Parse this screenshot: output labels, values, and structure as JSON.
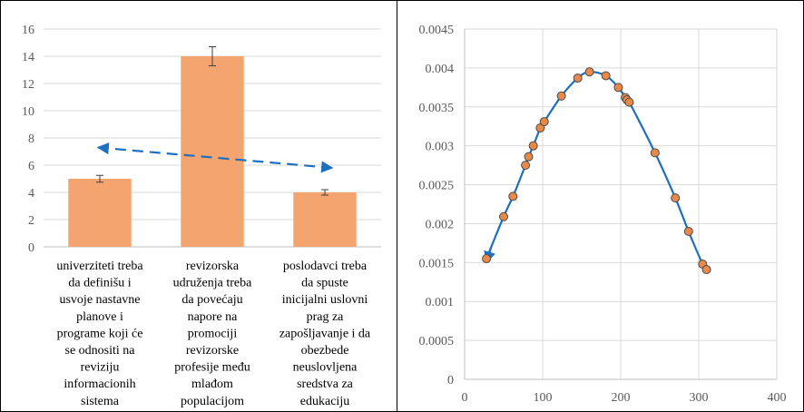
{
  "chart_data": [
    {
      "type": "bar",
      "categories": [
        [
          "univerziteti treba",
          "da definišu i",
          "usvoje nastavne",
          "planove i",
          "programe koji će",
          "se odnositi na",
          "reviziju",
          "informacionih",
          "sistema"
        ],
        [
          "revizorska",
          "udruženja treba",
          "da povećaju",
          "napore na",
          "promociji",
          "revizorske",
          "profesije među",
          "mlađom",
          "populacijom"
        ],
        [
          "poslodavci treba",
          "da spuste",
          "inicijalni uslovni",
          "prag za",
          "zapošljavanje i da",
          "obezbede",
          "neuslovljena",
          "sredstva za",
          "edukaciju"
        ]
      ],
      "values": [
        5,
        14,
        4
      ],
      "error_bars": [
        0.25,
        0.7,
        0.2
      ],
      "ylim": [
        0,
        16
      ],
      "yticks": [
        "0",
        "2",
        "4",
        "6",
        "8",
        "10",
        "12",
        "14",
        "16"
      ],
      "grid": true,
      "bar_color": "#F4A46E",
      "annotation": "dashed double-headed arrow from about 7.3 above the first bar to about 5.8 above the third bar",
      "arrow_color": "#1F6FBF",
      "arrow_from": [
        0,
        7.3
      ],
      "arrow_to": [
        2,
        5.8
      ]
    },
    {
      "type": "line",
      "xlim": [
        0,
        400
      ],
      "ylim": [
        0,
        0.0045
      ],
      "xticks": [
        "0",
        "100",
        "200",
        "300",
        "400"
      ],
      "yticks": [
        "0",
        "0.0005",
        "0.001",
        "0.0015",
        "0.002",
        "0.0025",
        "0.003",
        "0.0035",
        "0.004",
        "0.0045"
      ],
      "grid": true,
      "line_color": "#1F6FBF",
      "marker_color": "#E8894A",
      "arrow_at_start": true,
      "x": [
        28,
        50,
        62,
        78,
        82,
        88,
        97,
        102,
        124,
        145,
        160,
        181,
        197,
        206,
        208,
        211,
        244,
        270,
        287,
        305,
        310
      ],
      "y": [
        0.00155,
        0.00209,
        0.00235,
        0.00275,
        0.00286,
        0.003,
        0.00323,
        0.00331,
        0.00364,
        0.00387,
        0.00395,
        0.0039,
        0.00375,
        0.00362,
        0.00359,
        0.00356,
        0.00291,
        0.00233,
        0.0019,
        0.00148,
        0.00141
      ]
    }
  ]
}
